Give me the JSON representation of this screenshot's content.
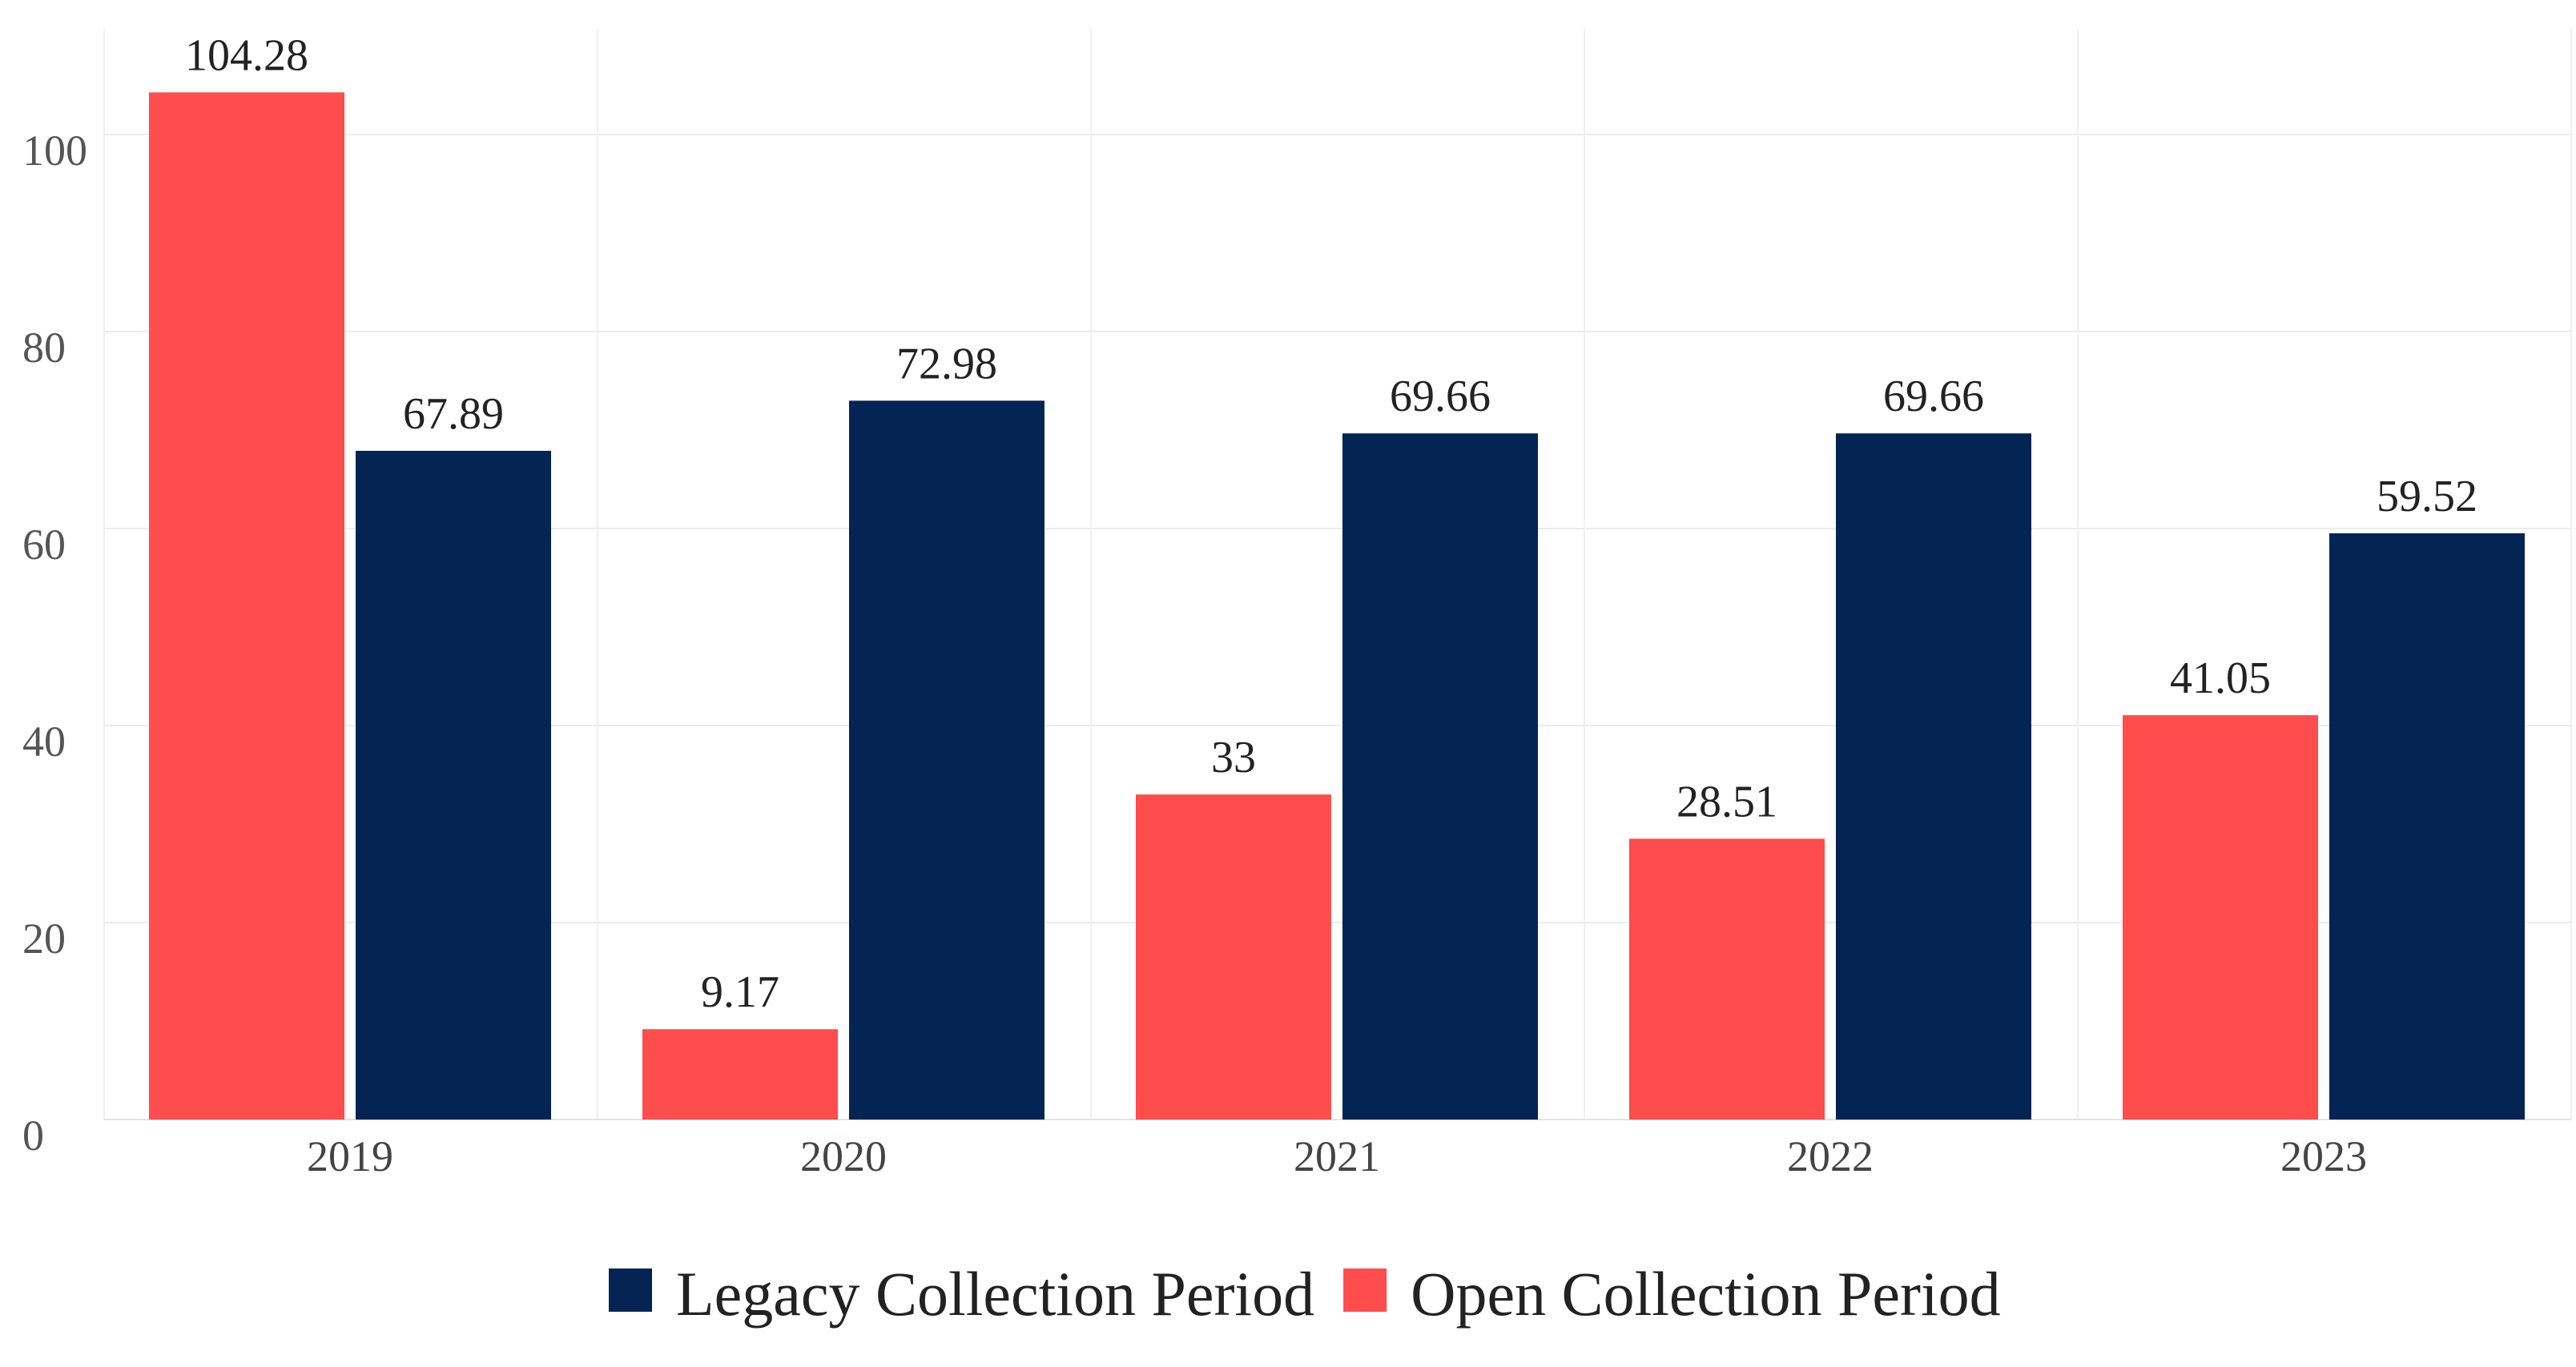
{
  "chart_data": {
    "type": "bar",
    "categories": [
      "2019",
      "2020",
      "2021",
      "2022",
      "2023"
    ],
    "series": [
      {
        "name": "Open Collection Period",
        "values": [
          104.28,
          9.17,
          33,
          28.51,
          41.05
        ],
        "labels": [
          "104.28",
          "9.17",
          "33",
          "28.51",
          "41.05"
        ],
        "color": "#ff4c4c"
      },
      {
        "name": "Legacy Collection Period",
        "values": [
          67.89,
          72.98,
          69.66,
          69.66,
          59.52
        ],
        "labels": [
          "67.89",
          "72.98",
          "69.66",
          "69.66",
          "59.52"
        ],
        "color": "#042453"
      }
    ],
    "yticks": [
      "0",
      "20",
      "40",
      "60",
      "80",
      "100"
    ],
    "ylim": [
      0,
      110
    ],
    "grid": true,
    "legend_position": "bottom-center",
    "legend_order": [
      "Legacy Collection Period",
      "Open Collection Period"
    ],
    "title": "",
    "xlabel": "",
    "ylabel": ""
  }
}
